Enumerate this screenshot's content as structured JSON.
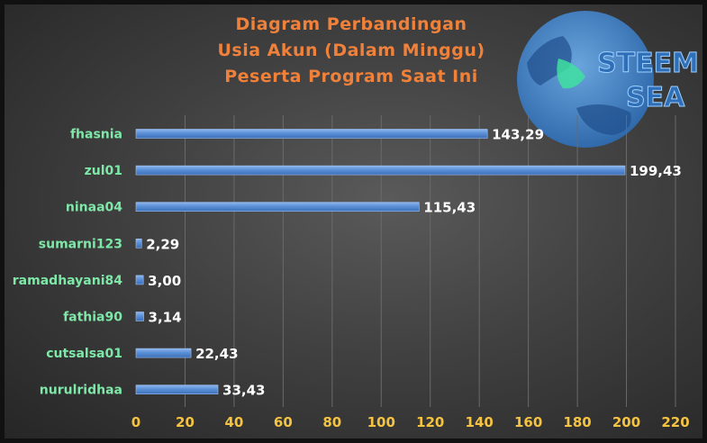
{
  "chart_data": {
    "type": "bar",
    "orientation": "horizontal",
    "title": [
      "Diagram Perbandingan",
      "Usia Akun (Dalam Minggu)",
      "Peserta Program Saat Ini"
    ],
    "categories": [
      "fhasnia",
      "zul01",
      "ninaa04",
      "sumarni123",
      "ramadhayani84",
      "fathia90",
      "cutsalsa01",
      "nurulridhaa"
    ],
    "values": [
      143.29,
      199.43,
      115.43,
      2.29,
      3.0,
      3.14,
      22.43,
      33.43
    ],
    "value_labels": [
      "143,29",
      "199,43",
      "115,43",
      "2,29",
      "3,00",
      "3,14",
      "22,43",
      "33,43"
    ],
    "x_ticks": [
      0,
      20,
      40,
      60,
      80,
      100,
      120,
      140,
      160,
      180,
      200,
      220
    ],
    "xlim": [
      0,
      220
    ],
    "grid": "vertical",
    "colors": {
      "bar": "#5b8fd6",
      "title": "#f0813a",
      "category_label": "#7ee8a8",
      "tick_label": "#f5c342",
      "value_label": "#ffffff",
      "grid": "#6a6a6a"
    }
  },
  "logo": {
    "line1": "STEEM",
    "line2": "SEA",
    "icon": "globe-icon"
  }
}
